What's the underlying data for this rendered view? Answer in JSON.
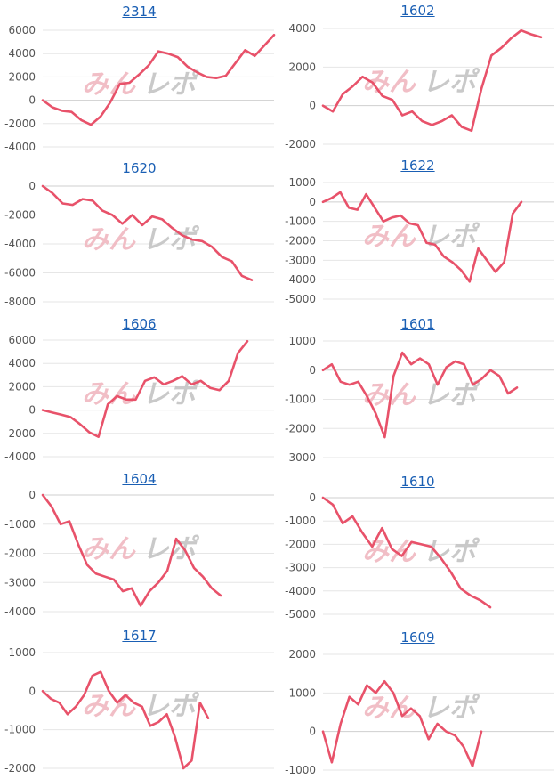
{
  "watermark": {
    "logo_text": "みんレポ"
  },
  "colors": {
    "line": "#e8526a",
    "title": "#1a5fb4",
    "grid": "#e6e6e6"
  },
  "chart_data": [
    {
      "type": "line",
      "title": "2314",
      "yticks": [
        6000,
        4000,
        2000,
        0,
        -2000,
        -4000
      ],
      "ylim": [
        -4000,
        6000
      ],
      "values": [
        0,
        -600,
        -900,
        -1000,
        -1700,
        -2100,
        -1400,
        -200,
        1400,
        1500,
        2200,
        3000,
        4200,
        4000,
        3700,
        2900,
        2400,
        2000,
        1900,
        2100,
        3200,
        4300,
        3800,
        4700,
        5600
      ],
      "grid": true
    },
    {
      "type": "line",
      "title": "1602",
      "yticks": [
        4000,
        2000,
        0,
        -2000
      ],
      "ylim": [
        -2000,
        4000
      ],
      "values": [
        0,
        -300,
        600,
        1000,
        1500,
        1200,
        500,
        300,
        -500,
        -300,
        -800,
        -1000,
        -800,
        -500,
        -1100,
        -1300,
        900,
        2600,
        3000,
        3500,
        3900,
        3700,
        3550
      ],
      "grid": true
    },
    {
      "type": "line",
      "title": "1620",
      "yticks": [
        0,
        -2000,
        -4000,
        -6000,
        -8000
      ],
      "ylim": [
        -8000,
        0
      ],
      "values": [
        0,
        -500,
        -1200,
        -1300,
        -900,
        -1000,
        -1700,
        -2000,
        -2600,
        -2000,
        -2700,
        -2100,
        -2300,
        -2900,
        -3400,
        -3700,
        -3800,
        -4200,
        -4900,
        -5200,
        -6200,
        -6500
      ],
      "grid": true
    },
    {
      "type": "line",
      "title": "1622",
      "yticks": [
        1000,
        0,
        -1000,
        -2000,
        -3000,
        -4000,
        -5000
      ],
      "ylim": [
        -5000,
        1000
      ],
      "values": [
        0,
        200,
        500,
        -300,
        -400,
        400,
        -300,
        -1000,
        -800,
        -700,
        -1100,
        -1200,
        -2100,
        -2200,
        -2800,
        -3100,
        -3500,
        -4100,
        -2400,
        -3000,
        -3600,
        -3100,
        -600,
        0
      ],
      "grid": true
    },
    {
      "type": "line",
      "title": "1606",
      "yticks": [
        6000,
        4000,
        2000,
        0,
        -2000,
        -4000
      ],
      "ylim": [
        -4000,
        6000
      ],
      "values": [
        0,
        -200,
        -400,
        -600,
        -1200,
        -1900,
        -2300,
        500,
        1200,
        900,
        900,
        2500,
        2800,
        2200,
        2500,
        2900,
        2200,
        2500,
        1900,
        1700,
        2500,
        4900,
        5900
      ],
      "grid": true
    },
    {
      "type": "line",
      "title": "1601",
      "yticks": [
        1000,
        0,
        -1000,
        -2000,
        -3000
      ],
      "ylim": [
        -3000,
        1000
      ],
      "values": [
        0,
        200,
        -400,
        -500,
        -400,
        -900,
        -1500,
        -2300,
        -200,
        600,
        200,
        400,
        200,
        -500,
        100,
        300,
        200,
        -500,
        -300,
        0,
        -200,
        -800,
        -600
      ],
      "grid": true
    },
    {
      "type": "line",
      "title": "1604",
      "yticks": [
        0,
        -1000,
        -2000,
        -3000,
        -4000
      ],
      "ylim": [
        -4000,
        0
      ],
      "values": [
        0,
        -400,
        -1000,
        -900,
        -1700,
        -2400,
        -2700,
        -2800,
        -2900,
        -3300,
        -3200,
        -3800,
        -3300,
        -3000,
        -2600,
        -1500,
        -1900,
        -2500,
        -2800,
        -3200,
        -3450
      ],
      "grid": true
    },
    {
      "type": "line",
      "title": "1610",
      "yticks": [
        0,
        -1000,
        -2000,
        -3000,
        -4000,
        -5000
      ],
      "ylim": [
        -5000,
        0
      ],
      "values": [
        0,
        -300,
        -1100,
        -800,
        -1500,
        -2100,
        -1300,
        -2200,
        -2500,
        -1900,
        -2000,
        -2100,
        -2600,
        -3200,
        -3900,
        -4200,
        -4400,
        -4700
      ],
      "grid": true
    },
    {
      "type": "line",
      "title": "1617",
      "yticks": [
        1000,
        0,
        -1000,
        -2000
      ],
      "ylim": [
        -2000,
        1000
      ],
      "values": [
        0,
        -200,
        -300,
        -600,
        -400,
        -100,
        400,
        500,
        0,
        -300,
        -100,
        -300,
        -400,
        -900,
        -800,
        -600,
        -1200,
        -2000,
        -1800,
        -300,
        -700
      ],
      "grid": true
    },
    {
      "type": "line",
      "title": "1609",
      "yticks": [
        2000,
        1000,
        0,
        -1000
      ],
      "ylim": [
        -1000,
        2000
      ],
      "values": [
        0,
        -800,
        200,
        900,
        700,
        1200,
        1000,
        1300,
        1000,
        400,
        600,
        400,
        -200,
        200,
        0,
        -100,
        -400,
        -900,
        0
      ],
      "grid": true
    }
  ]
}
